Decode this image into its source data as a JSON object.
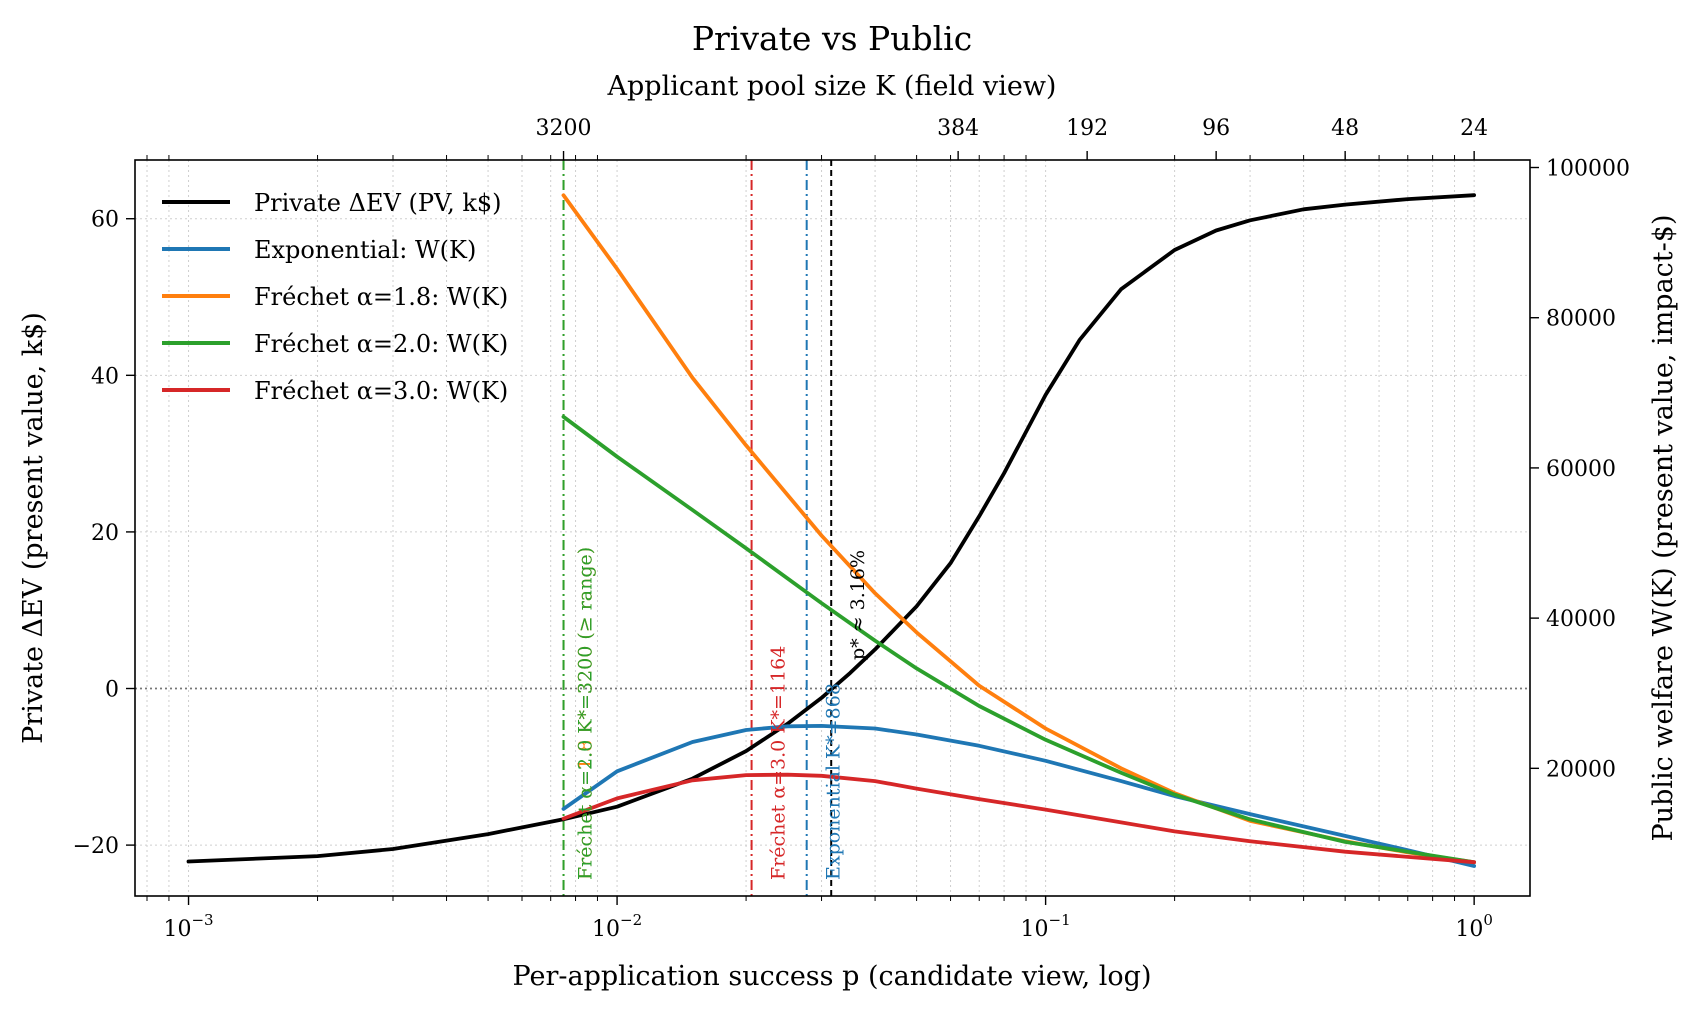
{
  "chart_data": {
    "type": "line",
    "title": "Private vs Public",
    "top_axis_title": "Applicant pool size K (field view)",
    "xlabel": "Per-application success p (candidate view, log)",
    "ylabel_left": "Private ΔEV (present value, k$)",
    "ylabel_right": "Public welfare W(K) (present value, impact-$)",
    "x_scale": "log",
    "xlim": [
      0.00075,
      1.35
    ],
    "ylim_left": [
      -26.5,
      67.5
    ],
    "ylim_right": [
      3000,
      101000
    ],
    "grid": true,
    "legend_position": "upper-left",
    "left_ticks": [
      {
        "value": -20,
        "label": "−20"
      },
      {
        "value": 0,
        "label": "0"
      },
      {
        "value": 20,
        "label": "20"
      },
      {
        "value": 40,
        "label": "40"
      },
      {
        "value": 60,
        "label": "60"
      }
    ],
    "right_ticks": [
      {
        "value": 20000,
        "label": "20000"
      },
      {
        "value": 40000,
        "label": "40000"
      },
      {
        "value": 60000,
        "label": "60000"
      },
      {
        "value": 80000,
        "label": "80000"
      },
      {
        "value": 100000,
        "label": "100000"
      }
    ],
    "bottom_ticks": [
      {
        "value": 0.001,
        "base": "10",
        "exp": "−3"
      },
      {
        "value": 0.01,
        "base": "10",
        "exp": "−2"
      },
      {
        "value": 0.1,
        "base": "10",
        "exp": "−1"
      },
      {
        "value": 1,
        "base": "10",
        "exp": "0"
      }
    ],
    "top_ticks": [
      {
        "K": 3200,
        "label": "3200"
      },
      {
        "K": 384,
        "label": "384"
      },
      {
        "K": 192,
        "label": "192"
      },
      {
        "K": 96,
        "label": "96"
      },
      {
        "K": 48,
        "label": "48"
      },
      {
        "K": 24,
        "label": "24"
      }
    ],
    "zero_line": 0,
    "series": [
      {
        "name": "Private ΔEV (PV, k$)",
        "axis": "left",
        "color": "#000000",
        "points": [
          [
            0.001,
            -22.1
          ],
          [
            0.002,
            -21.4
          ],
          [
            0.003,
            -20.5
          ],
          [
            0.005,
            -18.6
          ],
          [
            0.0075,
            -16.7
          ],
          [
            0.01,
            -15.1
          ],
          [
            0.015,
            -11.5
          ],
          [
            0.02,
            -8.0
          ],
          [
            0.025,
            -4.5
          ],
          [
            0.03,
            -1.2
          ],
          [
            0.035,
            2.0
          ],
          [
            0.04,
            5.0
          ],
          [
            0.05,
            10.5
          ],
          [
            0.06,
            16.0
          ],
          [
            0.07,
            22.0
          ],
          [
            0.08,
            27.5
          ],
          [
            0.1,
            37.5
          ],
          [
            0.12,
            44.5
          ],
          [
            0.15,
            51.0
          ],
          [
            0.2,
            56.0
          ],
          [
            0.25,
            58.5
          ],
          [
            0.3,
            59.8
          ],
          [
            0.4,
            61.2
          ],
          [
            0.5,
            61.8
          ],
          [
            0.7,
            62.5
          ],
          [
            1.0,
            63.0
          ]
        ]
      },
      {
        "name": "Exponential: W(K)",
        "axis": "right",
        "color": "#1f77b4",
        "points": [
          [
            0.0075,
            14600
          ],
          [
            0.01,
            19600
          ],
          [
            0.015,
            23500
          ],
          [
            0.02,
            25100
          ],
          [
            0.025,
            25600
          ],
          [
            0.03,
            25650
          ],
          [
            0.04,
            25300
          ],
          [
            0.05,
            24500
          ],
          [
            0.07,
            23000
          ],
          [
            0.1,
            21000
          ],
          [
            0.15,
            18300
          ],
          [
            0.2,
            16300
          ],
          [
            0.3,
            13900
          ],
          [
            0.5,
            11000
          ],
          [
            0.7,
            9100
          ],
          [
            1.0,
            7000
          ]
        ]
      },
      {
        "name": "Fréchet α=1.8: W(K)",
        "axis": "right",
        "color": "#ff7f0e",
        "points": [
          [
            0.0075,
            96300
          ],
          [
            0.01,
            86500
          ],
          [
            0.015,
            72000
          ],
          [
            0.02,
            63000
          ],
          [
            0.03,
            51000
          ],
          [
            0.04,
            43300
          ],
          [
            0.05,
            38100
          ],
          [
            0.07,
            31000
          ],
          [
            0.1,
            25300
          ],
          [
            0.15,
            20000
          ],
          [
            0.2,
            16700
          ],
          [
            0.3,
            13000
          ],
          [
            0.5,
            10300
          ],
          [
            0.7,
            8800
          ],
          [
            1.0,
            7500
          ]
        ]
      },
      {
        "name": "Fréchet α=2.0: W(K)",
        "axis": "right",
        "color": "#2ca02c",
        "points": [
          [
            0.0075,
            66800
          ],
          [
            0.01,
            61500
          ],
          [
            0.015,
            54400
          ],
          [
            0.02,
            49300
          ],
          [
            0.03,
            42000
          ],
          [
            0.04,
            37000
          ],
          [
            0.05,
            33300
          ],
          [
            0.07,
            28300
          ],
          [
            0.1,
            23800
          ],
          [
            0.15,
            19400
          ],
          [
            0.2,
            16500
          ],
          [
            0.3,
            13200
          ],
          [
            0.5,
            10200
          ],
          [
            0.7,
            8900
          ],
          [
            1.0,
            7500
          ]
        ]
      },
      {
        "name": "Fréchet α=3.0: W(K)",
        "axis": "right",
        "color": "#d62728",
        "points": [
          [
            0.0075,
            13300
          ],
          [
            0.01,
            16000
          ],
          [
            0.015,
            18400
          ],
          [
            0.02,
            19100
          ],
          [
            0.025,
            19150
          ],
          [
            0.03,
            19000
          ],
          [
            0.04,
            18300
          ],
          [
            0.05,
            17300
          ],
          [
            0.07,
            15900
          ],
          [
            0.1,
            14500
          ],
          [
            0.15,
            12800
          ],
          [
            0.2,
            11600
          ],
          [
            0.3,
            10300
          ],
          [
            0.5,
            8900
          ],
          [
            0.7,
            8200
          ],
          [
            1.0,
            7500
          ]
        ]
      }
    ],
    "vlines": [
      {
        "x": 0.0075,
        "color": "#ff7f0e",
        "style": "dashdot",
        "label": "Fréchet α=1.8 K*=3200 (≥ range)"
      },
      {
        "x": 0.0075,
        "color": "#2ca02c",
        "style": "dashdot",
        "label": "Fréchet α=2.0 K*=3200 (≥ range)"
      },
      {
        "x": 0.0206,
        "color": "#d62728",
        "style": "dashdot",
        "label": "Fréchet α=3.0 K*=1164"
      },
      {
        "x": 0.0277,
        "color": "#1f77b4",
        "style": "dashdot",
        "label": "Exponential K*=868"
      },
      {
        "x": 0.0316,
        "color": "#000000",
        "style": "dashed",
        "label": "p* ≈ 3.16%"
      }
    ]
  }
}
